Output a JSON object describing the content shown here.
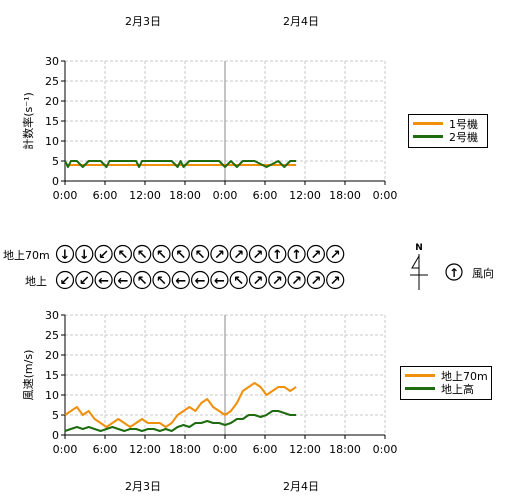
{
  "dates_top": [
    "2月3日",
    "2月4日"
  ],
  "dates_bottom": [
    "2月3日",
    "2月4日"
  ],
  "direction_panel": {
    "row_labels": [
      "地上70m",
      "地上"
    ],
    "compass_letter": "N",
    "legend_label": "風向",
    "legend_glyph": "↑",
    "rows": [
      [
        "↓",
        "↓",
        "↙",
        "↖",
        "↖",
        "↖",
        "↖",
        "↖",
        "↗",
        "↗",
        "↗",
        "↑",
        "↑",
        "↗",
        "↗"
      ],
      [
        "↙",
        "↙",
        "←",
        "←",
        "↖",
        "↖",
        "←",
        "←",
        "←",
        "↖",
        "↗",
        "↗",
        "↗",
        "↗",
        "↗"
      ]
    ]
  },
  "chart_data": [
    {
      "type": "line",
      "title": "",
      "ylabel": "計数率(s⁻¹)",
      "ylim": [
        0,
        30
      ],
      "yticks": [
        "30",
        "25",
        "20",
        "15",
        "10",
        "5",
        "0"
      ],
      "xlim_hours": [
        0,
        54
      ],
      "xticks": [
        "0:00",
        "6:00",
        "12:00",
        "18:00",
        "0:00",
        "6:00",
        "12:00",
        "18:00",
        "0:00"
      ],
      "grid": true,
      "legend": {
        "position": "right"
      },
      "series": [
        {
          "name": "1号機",
          "color": "#f0900a",
          "x": [
            0,
            3,
            6,
            9,
            12,
            15,
            18,
            21,
            24,
            27,
            30,
            33,
            36,
            39
          ],
          "values": [
            4,
            4,
            4,
            4,
            4,
            4,
            4,
            4,
            4,
            4,
            4,
            4,
            4,
            4
          ]
        },
        {
          "name": "2号機",
          "color": "#1e6b10",
          "x": [
            0,
            0.5,
            1,
            2,
            3,
            4,
            6,
            7,
            7.5,
            8,
            10,
            12,
            12.5,
            13,
            15,
            18,
            19,
            19.5,
            20,
            21,
            22,
            24,
            26,
            27,
            28,
            29,
            30,
            32,
            34,
            36,
            37,
            38,
            39
          ],
          "values": [
            5,
            3.5,
            5,
            5,
            3.5,
            5,
            5,
            3.5,
            5,
            5,
            5,
            5,
            3.5,
            5,
            5,
            5,
            3.5,
            5,
            3.5,
            5,
            5,
            5,
            5,
            3.5,
            5,
            3.5,
            5,
            5,
            3.5,
            5,
            3.5,
            5,
            5
          ]
        }
      ]
    },
    {
      "type": "line",
      "title": "",
      "ylabel": "風速(m/s)",
      "ylim": [
        0,
        30
      ],
      "yticks": [
        "30",
        "25",
        "20",
        "15",
        "10",
        "5",
        "0"
      ],
      "xlim_hours": [
        0,
        54
      ],
      "xticks": [
        "0:00",
        "6:00",
        "12:00",
        "18:00",
        "0:00",
        "6:00",
        "12:00",
        "18:00",
        "0:00"
      ],
      "grid": true,
      "legend": {
        "position": "right"
      },
      "series": [
        {
          "name": "地上70m",
          "color": "#f0900a",
          "x": [
            0,
            1,
            2,
            3,
            4,
            5,
            6,
            7,
            8,
            9,
            10,
            11,
            12,
            13,
            14,
            15,
            16,
            17,
            18,
            19,
            20,
            21,
            22,
            23,
            24,
            25,
            26,
            27,
            28,
            29,
            30,
            31,
            32,
            33,
            34,
            35,
            36,
            37,
            38,
            39
          ],
          "values": [
            5,
            6,
            7,
            5,
            6,
            4,
            3,
            2,
            3,
            4,
            3,
            2,
            3,
            4,
            3,
            3,
            3,
            2,
            3,
            5,
            6,
            7,
            6,
            8,
            9,
            7,
            6,
            5,
            6,
            8,
            11,
            12,
            13,
            12,
            10,
            11,
            12,
            12,
            11,
            12
          ]
        },
        {
          "name": "地上高",
          "color": "#1e6b10",
          "x": [
            0,
            1,
            2,
            3,
            4,
            5,
            6,
            7,
            8,
            9,
            10,
            11,
            12,
            13,
            14,
            15,
            16,
            17,
            18,
            19,
            20,
            21,
            22,
            23,
            24,
            25,
            26,
            27,
            28,
            29,
            30,
            31,
            32,
            33,
            34,
            35,
            36,
            37,
            38,
            39
          ],
          "values": [
            1,
            1.5,
            2,
            1.5,
            2,
            1.5,
            1,
            1.5,
            2,
            1.5,
            1,
            1.5,
            1.5,
            1,
            1.5,
            1.5,
            1,
            1.5,
            1,
            2,
            2.5,
            2,
            3,
            3,
            3.5,
            3,
            3,
            2.5,
            3,
            4,
            4,
            5,
            5,
            4.5,
            5,
            6,
            6,
            5.5,
            5,
            5
          ]
        }
      ]
    }
  ]
}
